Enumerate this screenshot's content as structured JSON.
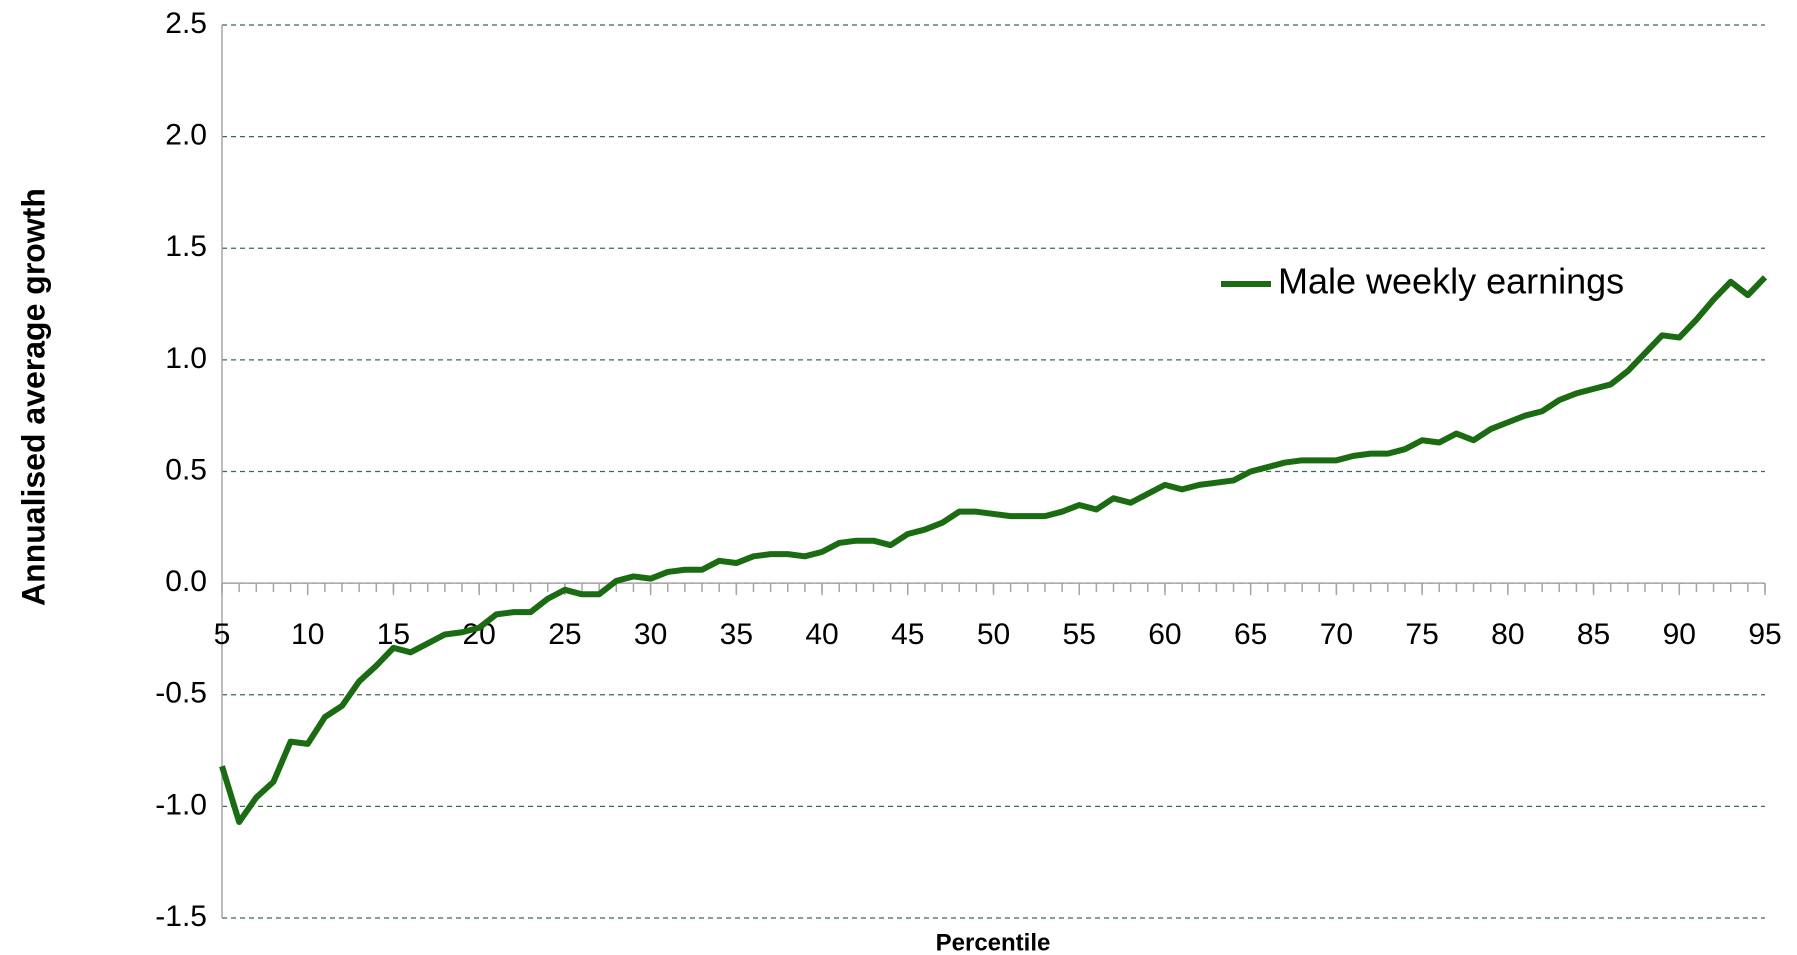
{
  "chart_data": {
    "type": "line",
    "x_label": "Percentile",
    "y_label": "Annualised average growth",
    "x": [
      5,
      6,
      7,
      8,
      9,
      10,
      11,
      12,
      13,
      14,
      15,
      16,
      17,
      18,
      19,
      20,
      21,
      22,
      23,
      24,
      25,
      26,
      27,
      28,
      29,
      30,
      31,
      32,
      33,
      34,
      35,
      36,
      37,
      38,
      39,
      40,
      41,
      42,
      43,
      44,
      45,
      46,
      47,
      48,
      49,
      50,
      51,
      52,
      53,
      54,
      55,
      56,
      57,
      58,
      59,
      60,
      61,
      62,
      63,
      64,
      65,
      66,
      67,
      68,
      69,
      70,
      71,
      72,
      73,
      74,
      75,
      76,
      77,
      78,
      79,
      80,
      81,
      82,
      83,
      84,
      85,
      86,
      87,
      88,
      89,
      90,
      91,
      92,
      93,
      94,
      95
    ],
    "series": [
      {
        "name": "Male weekly earnings",
        "color": "#1b6b12",
        "values": [
          -0.82,
          -1.07,
          -0.96,
          -0.89,
          -0.71,
          -0.72,
          -0.6,
          -0.55,
          -0.44,
          -0.37,
          -0.29,
          -0.31,
          -0.27,
          -0.23,
          -0.22,
          -0.2,
          -0.14,
          -0.13,
          -0.13,
          -0.07,
          -0.03,
          -0.05,
          -0.05,
          0.01,
          0.03,
          0.02,
          0.05,
          0.06,
          0.06,
          0.1,
          0.09,
          0.12,
          0.13,
          0.13,
          0.12,
          0.14,
          0.18,
          0.19,
          0.19,
          0.17,
          0.22,
          0.24,
          0.27,
          0.32,
          0.32,
          0.31,
          0.3,
          0.3,
          0.3,
          0.32,
          0.35,
          0.33,
          0.38,
          0.36,
          0.4,
          0.44,
          0.42,
          0.44,
          0.45,
          0.46,
          0.5,
          0.52,
          0.54,
          0.55,
          0.55,
          0.55,
          0.57,
          0.58,
          0.58,
          0.6,
          0.64,
          0.63,
          0.67,
          0.64,
          0.69,
          0.72,
          0.75,
          0.77,
          0.82,
          0.85,
          0.87,
          0.89,
          0.95,
          1.03,
          1.11,
          1.1,
          1.18,
          1.27,
          1.35,
          1.29,
          1.37
        ]
      }
    ],
    "xlim": [
      5,
      95
    ],
    "xticks": [
      5,
      10,
      15,
      20,
      25,
      30,
      35,
      40,
      45,
      50,
      55,
      60,
      65,
      70,
      75,
      80,
      85,
      90,
      95
    ],
    "ylim": [
      -1.5,
      2.5
    ],
    "yticks": [
      2.5,
      {
        "value": 2,
        "label": "2.0"
      },
      1.5,
      {
        "value": 1,
        "label": "1.0"
      },
      0.5,
      {
        "value": 0,
        "label": "0.0"
      },
      -0.5,
      {
        "value": -1,
        "label": "-1.0"
      },
      -1.5
    ],
    "grid": true,
    "legend": "right"
  }
}
